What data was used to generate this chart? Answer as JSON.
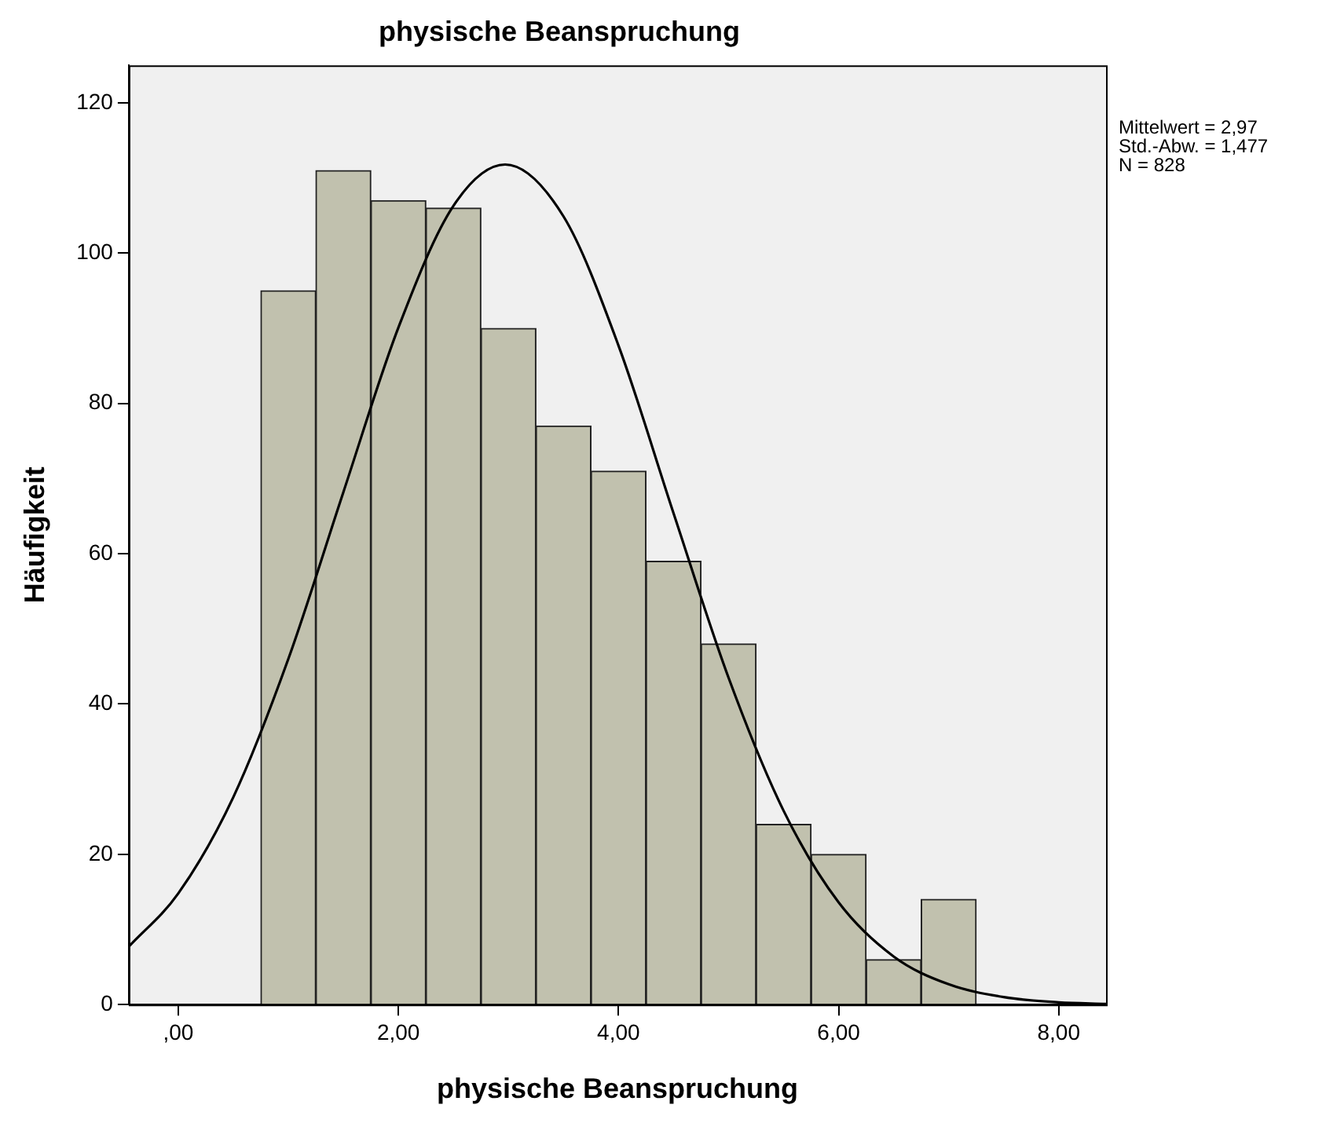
{
  "chart_data": {
    "type": "histogram",
    "title": "physische Beanspruchung",
    "xlabel": "physische Beanspruchung",
    "ylabel": "Häufigkeit",
    "bins": [
      0.75,
      1.25,
      1.75,
      2.25,
      2.75,
      3.25,
      3.75,
      4.25,
      4.75,
      5.25,
      5.75,
      6.25,
      6.75,
      7.25
    ],
    "values": [
      95,
      111,
      107,
      106,
      90,
      77,
      71,
      59,
      48,
      24,
      20,
      6,
      14
    ],
    "color": "#c1c1ae",
    "series": [
      {
        "type": "line",
        "color": "#000000",
        "x": [
          -0.45,
          0,
          0.5,
          1,
          1.5,
          2,
          2.5,
          2.97,
          3.5,
          4,
          4.5,
          5,
          5.5,
          6,
          6.5,
          7,
          7.5,
          8,
          8.43
        ],
        "values": [
          7.7,
          14.8,
          27.6,
          46,
          68.2,
          90.1,
          106.3,
          111.8,
          104.9,
          87.7,
          65.4,
          43.5,
          25.8,
          13.6,
          6.4,
          2.7,
          1,
          0.3,
          0.1
        ]
      }
    ],
    "marker": "none",
    "xlim": [
      -0.45,
      8.43
    ],
    "xticks": [
      {
        "value": 0,
        "label": ",00"
      },
      {
        "value": 2,
        "label": "2,00"
      },
      {
        "value": 4,
        "label": "4,00"
      },
      {
        "value": 6,
        "label": "6,00"
      },
      {
        "value": 8,
        "label": "8,00"
      }
    ],
    "ylim": [
      0,
      125
    ],
    "yticks": [
      0,
      20,
      40,
      60,
      80,
      100,
      120
    ],
    "grid": false,
    "legend": false,
    "annotations": [
      "Mittelwert = 2,97",
      "Std.-Abw. = 1,477",
      "N = 828"
    ]
  }
}
